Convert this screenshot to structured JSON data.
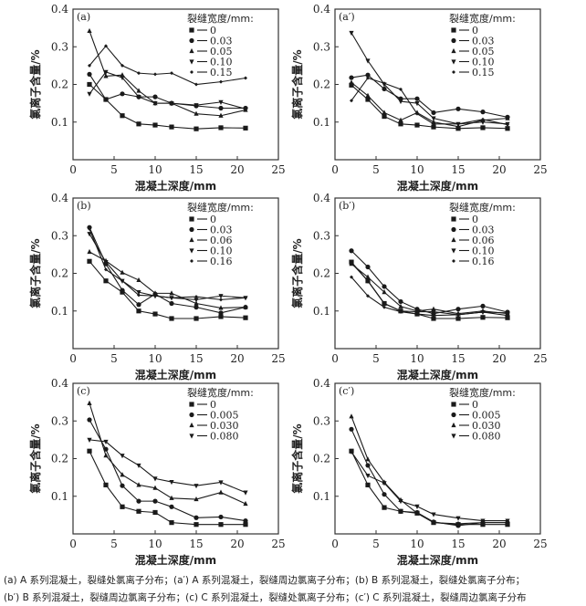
{
  "chart_data": [
    {
      "type": "line",
      "panel_label": "(a)",
      "xlabel": "混凝土深度/mm",
      "ylabel": "氯离子含量/%",
      "xlim": [
        0,
        25
      ],
      "ylim": [
        0,
        0.4
      ],
      "xticks": [
        "0",
        "5",
        "10",
        "15",
        "20",
        "25"
      ],
      "yticks": [
        "0.1",
        "0.2",
        "0.3",
        "0.4"
      ],
      "legend_title": "裂缝宽度/mm:",
      "legend_position": "top-right",
      "x": [
        2,
        4,
        6,
        8,
        10,
        12,
        15,
        18,
        21
      ],
      "series": [
        {
          "name": "0",
          "marker": "square",
          "values": [
            0.2,
            0.16,
            0.117,
            0.095,
            0.092,
            0.087,
            0.082,
            0.085,
            0.084
          ]
        },
        {
          "name": "0.03",
          "marker": "circle",
          "values": [
            0.227,
            0.16,
            0.175,
            0.167,
            0.167,
            0.15,
            0.143,
            0.137,
            0.137
          ]
        },
        {
          "name": "0.05",
          "marker": "triangle-up",
          "values": [
            0.342,
            0.222,
            0.225,
            0.183,
            0.15,
            0.15,
            0.122,
            0.117,
            0.132
          ]
        },
        {
          "name": "0.10",
          "marker": "triangle-down",
          "values": [
            0.175,
            0.233,
            0.218,
            0.167,
            0.15,
            0.15,
            0.145,
            0.153,
            0.135
          ]
        },
        {
          "name": "0.15",
          "marker": "diamond",
          "values": [
            0.25,
            0.302,
            0.25,
            0.23,
            0.227,
            0.23,
            0.2,
            0.207,
            0.217
          ]
        }
      ]
    },
    {
      "type": "line",
      "panel_label": "(a′)",
      "xlabel": "混凝土深度/mm",
      "ylabel": "氯离子含量/%",
      "xlim": [
        0,
        25
      ],
      "ylim": [
        0,
        0.4
      ],
      "xticks": [
        "0",
        "5",
        "10",
        "15",
        "20",
        "25"
      ],
      "yticks": [
        "0.1",
        "0.2",
        "0.3",
        "0.4"
      ],
      "legend_title": "裂缝宽度/mm:",
      "legend_position": "top-right",
      "x": [
        2,
        4,
        6,
        8,
        10,
        12,
        15,
        18,
        21
      ],
      "series": [
        {
          "name": "0",
          "marker": "square",
          "values": [
            0.198,
            0.16,
            0.115,
            0.095,
            0.092,
            0.087,
            0.083,
            0.085,
            0.083
          ]
        },
        {
          "name": "0.03",
          "marker": "circle",
          "values": [
            0.218,
            0.225,
            0.188,
            0.162,
            0.162,
            0.125,
            0.135,
            0.127,
            0.113
          ]
        },
        {
          "name": "0.05",
          "marker": "triangle-up",
          "values": [
            0.205,
            0.17,
            0.125,
            0.105,
            0.125,
            0.1,
            0.088,
            0.105,
            0.11
          ]
        },
        {
          "name": "0.10",
          "marker": "triangle-down",
          "values": [
            0.337,
            0.263,
            0.2,
            0.155,
            0.15,
            0.11,
            0.095,
            0.1,
            0.095
          ]
        },
        {
          "name": "0.15",
          "marker": "diamond",
          "values": [
            0.157,
            0.217,
            0.203,
            0.187,
            0.122,
            0.095,
            0.095,
            0.107,
            0.093
          ]
        }
      ]
    },
    {
      "type": "line",
      "panel_label": "(b)",
      "xlabel": "混凝土深度/mm",
      "ylabel": "氯离子含量/%",
      "xlim": [
        0,
        25
      ],
      "ylim": [
        0,
        0.4
      ],
      "xticks": [
        "0",
        "5",
        "10",
        "15",
        "20",
        "25"
      ],
      "yticks": [
        "0.1",
        "0.2",
        "0.3",
        "0.4"
      ],
      "legend_title": "裂缝宽度/mm:",
      "legend_position": "top-right",
      "x": [
        2,
        4,
        6,
        8,
        10,
        12,
        15,
        18,
        21
      ],
      "series": [
        {
          "name": "0",
          "marker": "square",
          "values": [
            0.232,
            0.18,
            0.15,
            0.1,
            0.092,
            0.08,
            0.08,
            0.085,
            0.082
          ]
        },
        {
          "name": "0.03",
          "marker": "circle",
          "values": [
            0.322,
            0.225,
            0.155,
            0.117,
            0.145,
            0.12,
            0.11,
            0.095,
            0.11
          ]
        },
        {
          "name": "0.06",
          "marker": "triangle-up",
          "values": [
            0.257,
            0.233,
            0.202,
            0.182,
            0.147,
            0.147,
            0.12,
            0.108,
            0.11
          ]
        },
        {
          "name": "0.10",
          "marker": "triangle-down",
          "values": [
            0.305,
            0.23,
            0.18,
            0.15,
            0.14,
            0.135,
            0.13,
            0.14,
            0.135
          ]
        },
        {
          "name": "0.16",
          "marker": "diamond",
          "values": [
            0.318,
            0.21,
            0.18,
            0.142,
            0.14,
            0.135,
            0.138,
            0.13,
            0.135
          ]
        }
      ]
    },
    {
      "type": "line",
      "panel_label": "(b′)",
      "xlabel": "混凝土深度/mm",
      "ylabel": "氯离子含量/%",
      "xlim": [
        0,
        25
      ],
      "ylim": [
        0,
        0.4
      ],
      "xticks": [
        "0",
        "5",
        "10",
        "15",
        "20",
        "25"
      ],
      "yticks": [
        "0.1",
        "0.2",
        "0.3",
        "0.4"
      ],
      "legend_title": "裂缝宽度/mm:",
      "legend_position": "top-right",
      "x": [
        2,
        4,
        6,
        8,
        10,
        12,
        15,
        18,
        21
      ],
      "series": [
        {
          "name": "0",
          "marker": "square",
          "values": [
            0.23,
            0.18,
            0.12,
            0.1,
            0.092,
            0.08,
            0.08,
            0.083,
            0.082
          ]
        },
        {
          "name": "0.03",
          "marker": "circle",
          "values": [
            0.26,
            0.217,
            0.165,
            0.125,
            0.105,
            0.093,
            0.105,
            0.113,
            0.097
          ]
        },
        {
          "name": "0.06",
          "marker": "triangle-up",
          "values": [
            0.225,
            0.19,
            0.15,
            0.112,
            0.1,
            0.105,
            0.093,
            0.1,
            0.093
          ]
        },
        {
          "name": "0.10",
          "marker": "triangle-down",
          "values": [
            0.228,
            0.18,
            0.12,
            0.1,
            0.098,
            0.098,
            0.09,
            0.097,
            0.088
          ]
        },
        {
          "name": "0.16",
          "marker": "diamond",
          "values": [
            0.19,
            0.14,
            0.11,
            0.098,
            0.092,
            0.088,
            0.09,
            0.097,
            0.095
          ]
        }
      ]
    },
    {
      "type": "line",
      "panel_label": "(c)",
      "xlabel": "混凝土深度/mm",
      "ylabel": "氯离子含量/%",
      "xlim": [
        0,
        25
      ],
      "ylim": [
        0,
        0.4
      ],
      "xticks": [
        "0",
        "5",
        "10",
        "15",
        "20",
        "25"
      ],
      "yticks": [
        "0.1",
        "0.2",
        "0.3",
        "0.4"
      ],
      "legend_title": "裂缝宽度/mm:",
      "legend_position": "top-right",
      "x": [
        2,
        4,
        6,
        8,
        10,
        12,
        15,
        18,
        21
      ],
      "series": [
        {
          "name": "0",
          "marker": "square",
          "values": [
            0.22,
            0.13,
            0.072,
            0.06,
            0.057,
            0.03,
            0.025,
            0.025,
            0.025
          ]
        },
        {
          "name": "0.005",
          "marker": "circle",
          "values": [
            0.303,
            0.225,
            0.128,
            0.087,
            0.087,
            0.072,
            0.043,
            0.045,
            0.035
          ]
        },
        {
          "name": "0.030",
          "marker": "triangle-up",
          "values": [
            0.347,
            0.208,
            0.157,
            0.13,
            0.122,
            0.095,
            0.092,
            0.11,
            0.08
          ]
        },
        {
          "name": "0.080",
          "marker": "triangle-down",
          "values": [
            0.25,
            0.245,
            0.208,
            0.182,
            0.147,
            0.138,
            0.128,
            0.137,
            0.11
          ]
        }
      ]
    },
    {
      "type": "line",
      "panel_label": "(c′)",
      "xlabel": "混凝土深度/mm",
      "ylabel": "氯离子含量/%",
      "xlim": [
        0,
        25
      ],
      "ylim": [
        0,
        0.4
      ],
      "xticks": [
        "0",
        "5",
        "10",
        "15",
        "20",
        "25"
      ],
      "yticks": [
        "0.1",
        "0.2",
        "0.3",
        "0.4"
      ],
      "legend_title": "裂缝宽度/mm:",
      "legend_position": "top-right",
      "x": [
        2,
        4,
        6,
        8,
        10,
        12,
        15,
        18,
        21
      ],
      "series": [
        {
          "name": "0",
          "marker": "square",
          "values": [
            0.22,
            0.13,
            0.07,
            0.06,
            0.055,
            0.03,
            0.025,
            0.025,
            0.025
          ]
        },
        {
          "name": "0.005",
          "marker": "circle",
          "values": [
            0.278,
            0.182,
            0.105,
            0.06,
            0.057,
            0.032,
            0.022,
            0.03,
            0.03
          ]
        },
        {
          "name": "0.030",
          "marker": "triangle-up",
          "values": [
            0.312,
            0.198,
            0.137,
            0.09,
            0.055,
            0.03,
            0.027,
            0.03,
            0.03
          ]
        },
        {
          "name": "0.080",
          "marker": "triangle-down",
          "values": [
            0.218,
            0.155,
            0.135,
            0.087,
            0.073,
            0.052,
            0.042,
            0.035,
            0.035
          ]
        }
      ]
    }
  ],
  "captions": [
    "(a) A 系列混凝土，裂缝处氯离子分布；(a′) A 系列混凝土，裂缝周边氯离子分布；(b) B 系列混凝土，裂缝处氯离子分布；",
    "(b′) B 系列混凝土，裂缝周边氯离子分布；(c) C 系列混凝土，裂缝处氯离子分布；(c′) C 系列混凝土，裂缝周边氯离子分布"
  ],
  "colors": {
    "line": "#1a1a1a",
    "axis": "#333333"
  }
}
